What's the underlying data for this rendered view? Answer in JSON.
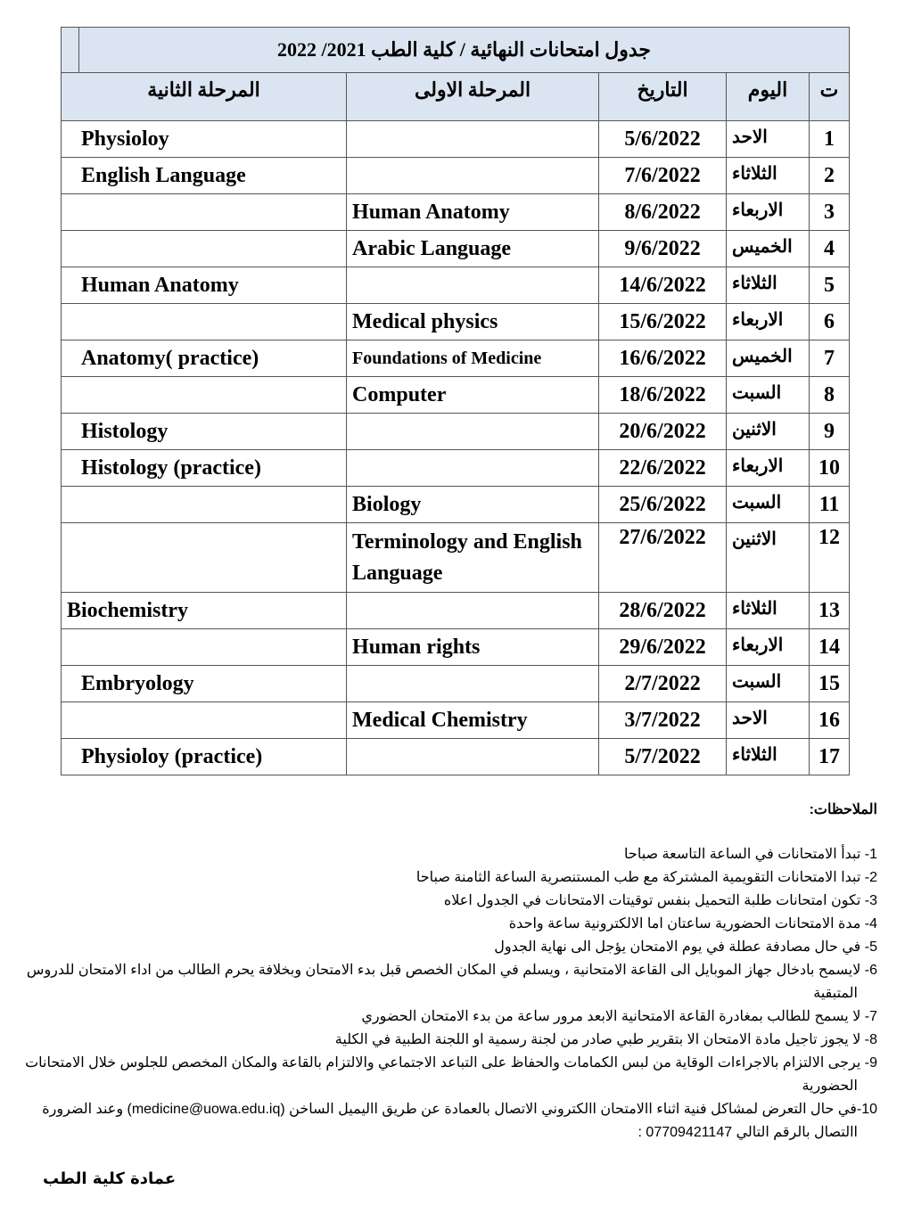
{
  "title": "جدول امتحانات النهائية / كلية الطب 2021/ 2022",
  "headers": {
    "num": "ت",
    "day": "اليوم",
    "date": "التاريخ",
    "stage1": "المرحلة الاولى",
    "stage2": "المرحلة الثانية"
  },
  "rows": [
    {
      "n": "1",
      "day": "الاحد",
      "date": "5/6/2022",
      "s1": "",
      "s2": "Physioloy"
    },
    {
      "n": "2",
      "day": "الثلاثاء",
      "date": "7/6/2022",
      "s1": "",
      "s2": "English Language"
    },
    {
      "n": "3",
      "day": "الاربعاء",
      "date": "8/6/2022",
      "s1": "Human   Anatomy",
      "s2": ""
    },
    {
      "n": "4",
      "day": "الخميس",
      "date": "9/6/2022",
      "s1": "Arabic  Language",
      "s2": ""
    },
    {
      "n": "5",
      "day": "الثلاثاء",
      "date": "14/6/2022",
      "s1": "",
      "s2": "Human   Anatomy"
    },
    {
      "n": "6",
      "day": "الاربعاء",
      "date": "15/6/2022",
      "s1": "Medical physics",
      "s2": ""
    },
    {
      "n": "7",
      "day": "الخميس",
      "date": "16/6/2022",
      "s1": "Foundations of Medicine",
      "s2": "Anatomy( practice)"
    },
    {
      "n": "8",
      "day": "السبت",
      "date": "18/6/2022",
      "s1": "Computer",
      "s2": ""
    },
    {
      "n": "9",
      "day": "الاثنين",
      "date": "20/6/2022",
      "s1": "",
      "s2": "Histology"
    },
    {
      "n": "10",
      "day": "الاربعاء",
      "date": "22/6/2022",
      "s1": "",
      "s2": "Histology (practice)"
    },
    {
      "n": "11",
      "day": "السبت",
      "date": "25/6/2022",
      "s1": "Biology",
      "s2": ""
    },
    {
      "n": "12",
      "day": "الاثنين",
      "date": "27/6/2022",
      "s1": "Terminology and English Language",
      "s2": ""
    },
    {
      "n": "13",
      "day": "الثلاثاء",
      "date": "28/6/2022",
      "s1": "",
      "s2": "Biochemistry"
    },
    {
      "n": "14",
      "day": "الاربعاء",
      "date": "29/6/2022",
      "s1": "Human rights",
      "s2": ""
    },
    {
      "n": "15",
      "day": "السبت",
      "date": "2/7/2022",
      "s1": "",
      "s2": "Embryology"
    },
    {
      "n": "16",
      "day": "الاحد",
      "date": "3/7/2022",
      "s1": "Medical Chemistry",
      "s2": ""
    },
    {
      "n": "17",
      "day": "الثلاثاء",
      "date": "5/7/2022",
      "s1": "",
      "s2": "Physioloy (practice)"
    }
  ],
  "notes_title": "الملاحظات:",
  "notes": [
    "1- تبدأ الامتحانات في الساعة التاسعة صباحا",
    "2- تبدا الامتحانات التقويمية المشتركة مع طب المستنصرية الساعة الثامنة صباحا",
    "3- تكون  امتحانات طلبة التحميل بنفس توقيتات الامتحانات في الجدول اعلاه",
    "4- مدة الامتحانات   الحضورية ساعتان  اما الالكترونية ساعة واحدة",
    "5- في حال مصادفة عطلة في يوم الامتحان يؤجل الى نهاية الجدول",
    "6- لايسمح بادخال جهاز الموبايل الى القاعة الامتحانية ، ويسلم في المكان الخصص  قبل  بدء الامتحان وبخلافة يحرم الطالب من اداء الامتحان للدروس المتبقية",
    "7- لا يسمح للطالب بمغادرة القاعة الامتحانية الابعد مرور ساعة من بدء الامتحان الحضوري",
    "8- لا يجوز تاجيل مادة الامتحان الا بتقرير طبي صادر من لجنة رسمية  او اللجنة الطبية في الكلية",
    "9- يرجى الالتزام بالاجراءات الوقاية من لبس الكمامات والحفاظ على التباعد الاجتماعي والالتزام بالقاعة والمكان المخصص للجلوس خلال الامتحانات الحضورية",
    "10-في حال التعرض لمشاكل فنية اثناء االامتحان االكتروني الاتصال بالعمادة عن طريق االيميل الساخن (medicine@uowa.edu.iq) وعند الضرورة االتصال بالرقم التالي 07709421147 :"
  ],
  "signature": "عمادة كلية الطب"
}
